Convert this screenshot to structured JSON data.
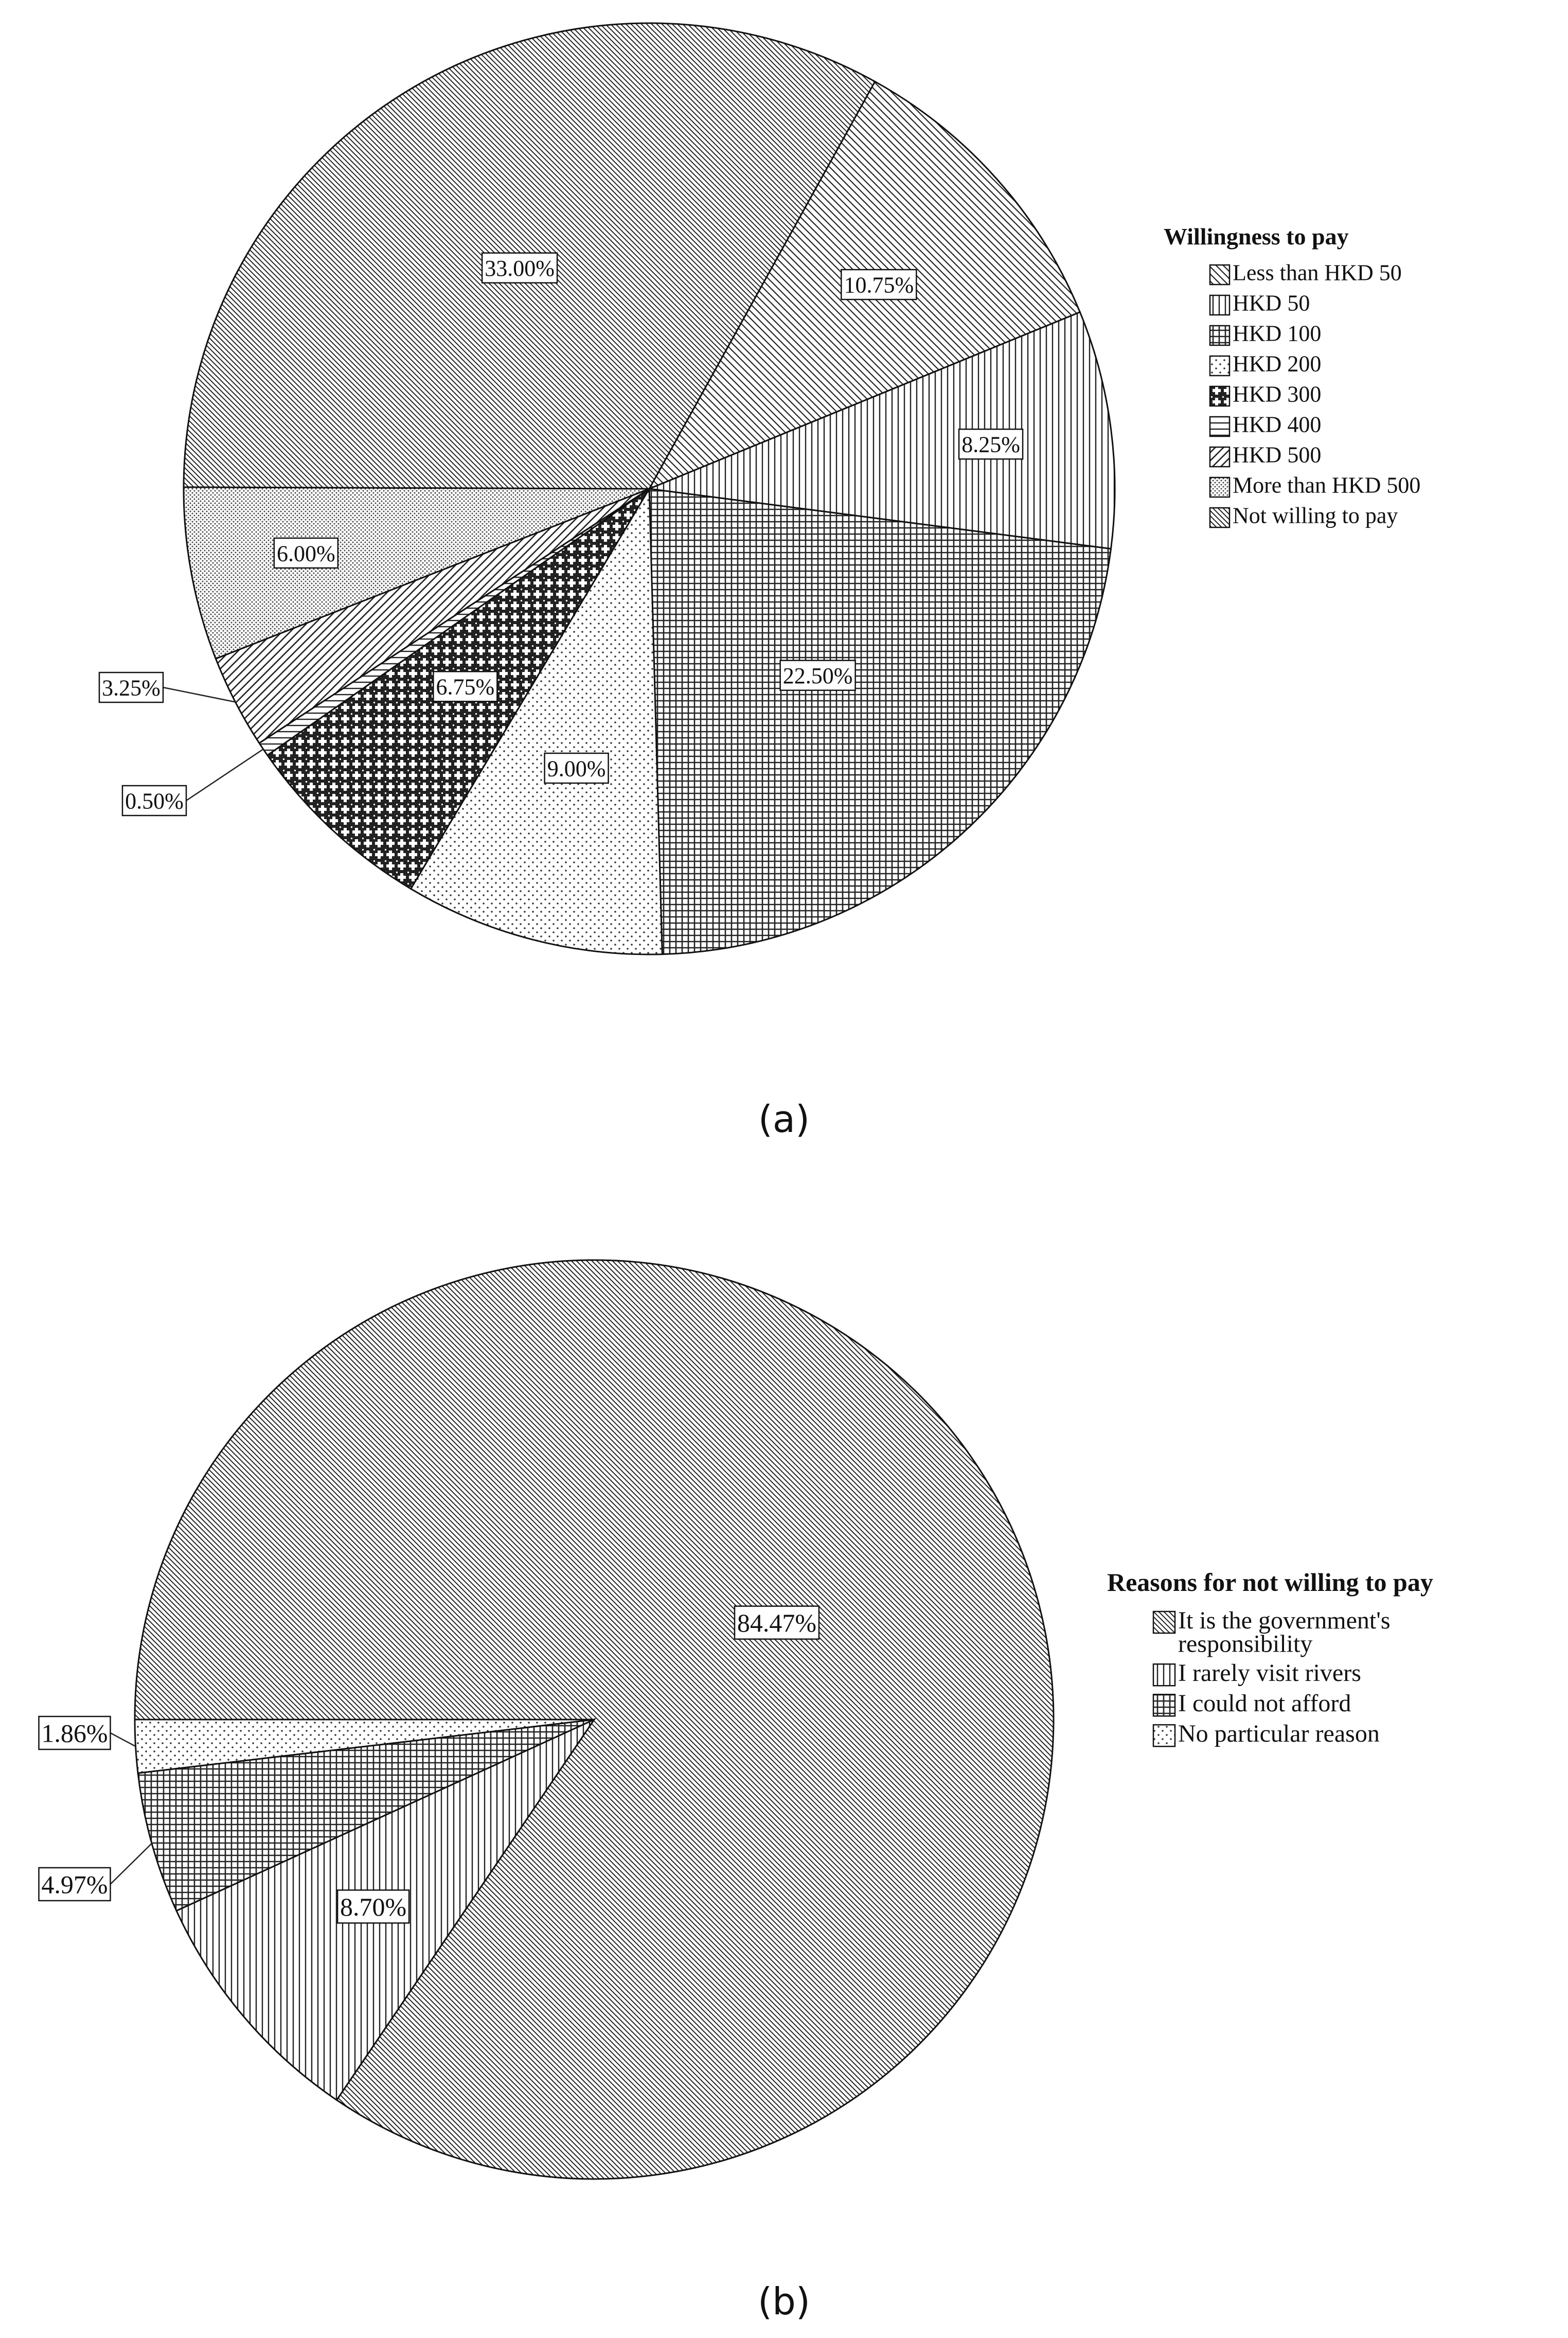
{
  "captions": [
    "(a)",
    "(b)"
  ],
  "chart_data": [
    {
      "type": "pie",
      "title": "",
      "legend_title": "Willingness to pay",
      "legend_placement": "right",
      "slices": [
        {
          "label": "Less than HKD 50",
          "value": 10.75,
          "value_label": "10.75%",
          "pattern": "diag-left"
        },
        {
          "label": "HKD 50",
          "value": 8.25,
          "value_label": "8.25%",
          "pattern": "vertical"
        },
        {
          "label": "HKD 100",
          "value": 22.5,
          "value_label": "22.50%",
          "pattern": "crosshatch"
        },
        {
          "label": "HKD 200",
          "value": 9.0,
          "value_label": "9.00%",
          "pattern": "dots"
        },
        {
          "label": "HKD 300",
          "value": 6.75,
          "value_label": "6.75%",
          "pattern": "plus"
        },
        {
          "label": "HKD 400",
          "value": 0.5,
          "value_label": "0.50%",
          "pattern": "horizontal"
        },
        {
          "label": "HKD 500",
          "value": 3.25,
          "value_label": "3.25%",
          "pattern": "diag-right"
        },
        {
          "label": "More than HKD 500",
          "value": 6.0,
          "value_label": "6.00%",
          "pattern": "fine-dots"
        },
        {
          "label": "Not willing to pay",
          "value": 33.0,
          "value_label": "33.00%",
          "pattern": "diag-left-dense"
        }
      ]
    },
    {
      "type": "pie",
      "title": "",
      "legend_title": "Reasons for not willing to pay",
      "legend_placement": "right",
      "slices": [
        {
          "label": "It is the government's responsibility",
          "value": 84.47,
          "value_label": "84.47%",
          "pattern": "diag-left-dense"
        },
        {
          "label": "I rarely visit rivers",
          "value": 8.7,
          "value_label": "8.70%",
          "pattern": "vertical"
        },
        {
          "label": "I could not afford",
          "value": 4.97,
          "value_label": "4.97%",
          "pattern": "crosshatch"
        },
        {
          "label": "No particular reason",
          "value": 1.86,
          "value_label": "1.86%",
          "pattern": "dots"
        }
      ]
    }
  ]
}
